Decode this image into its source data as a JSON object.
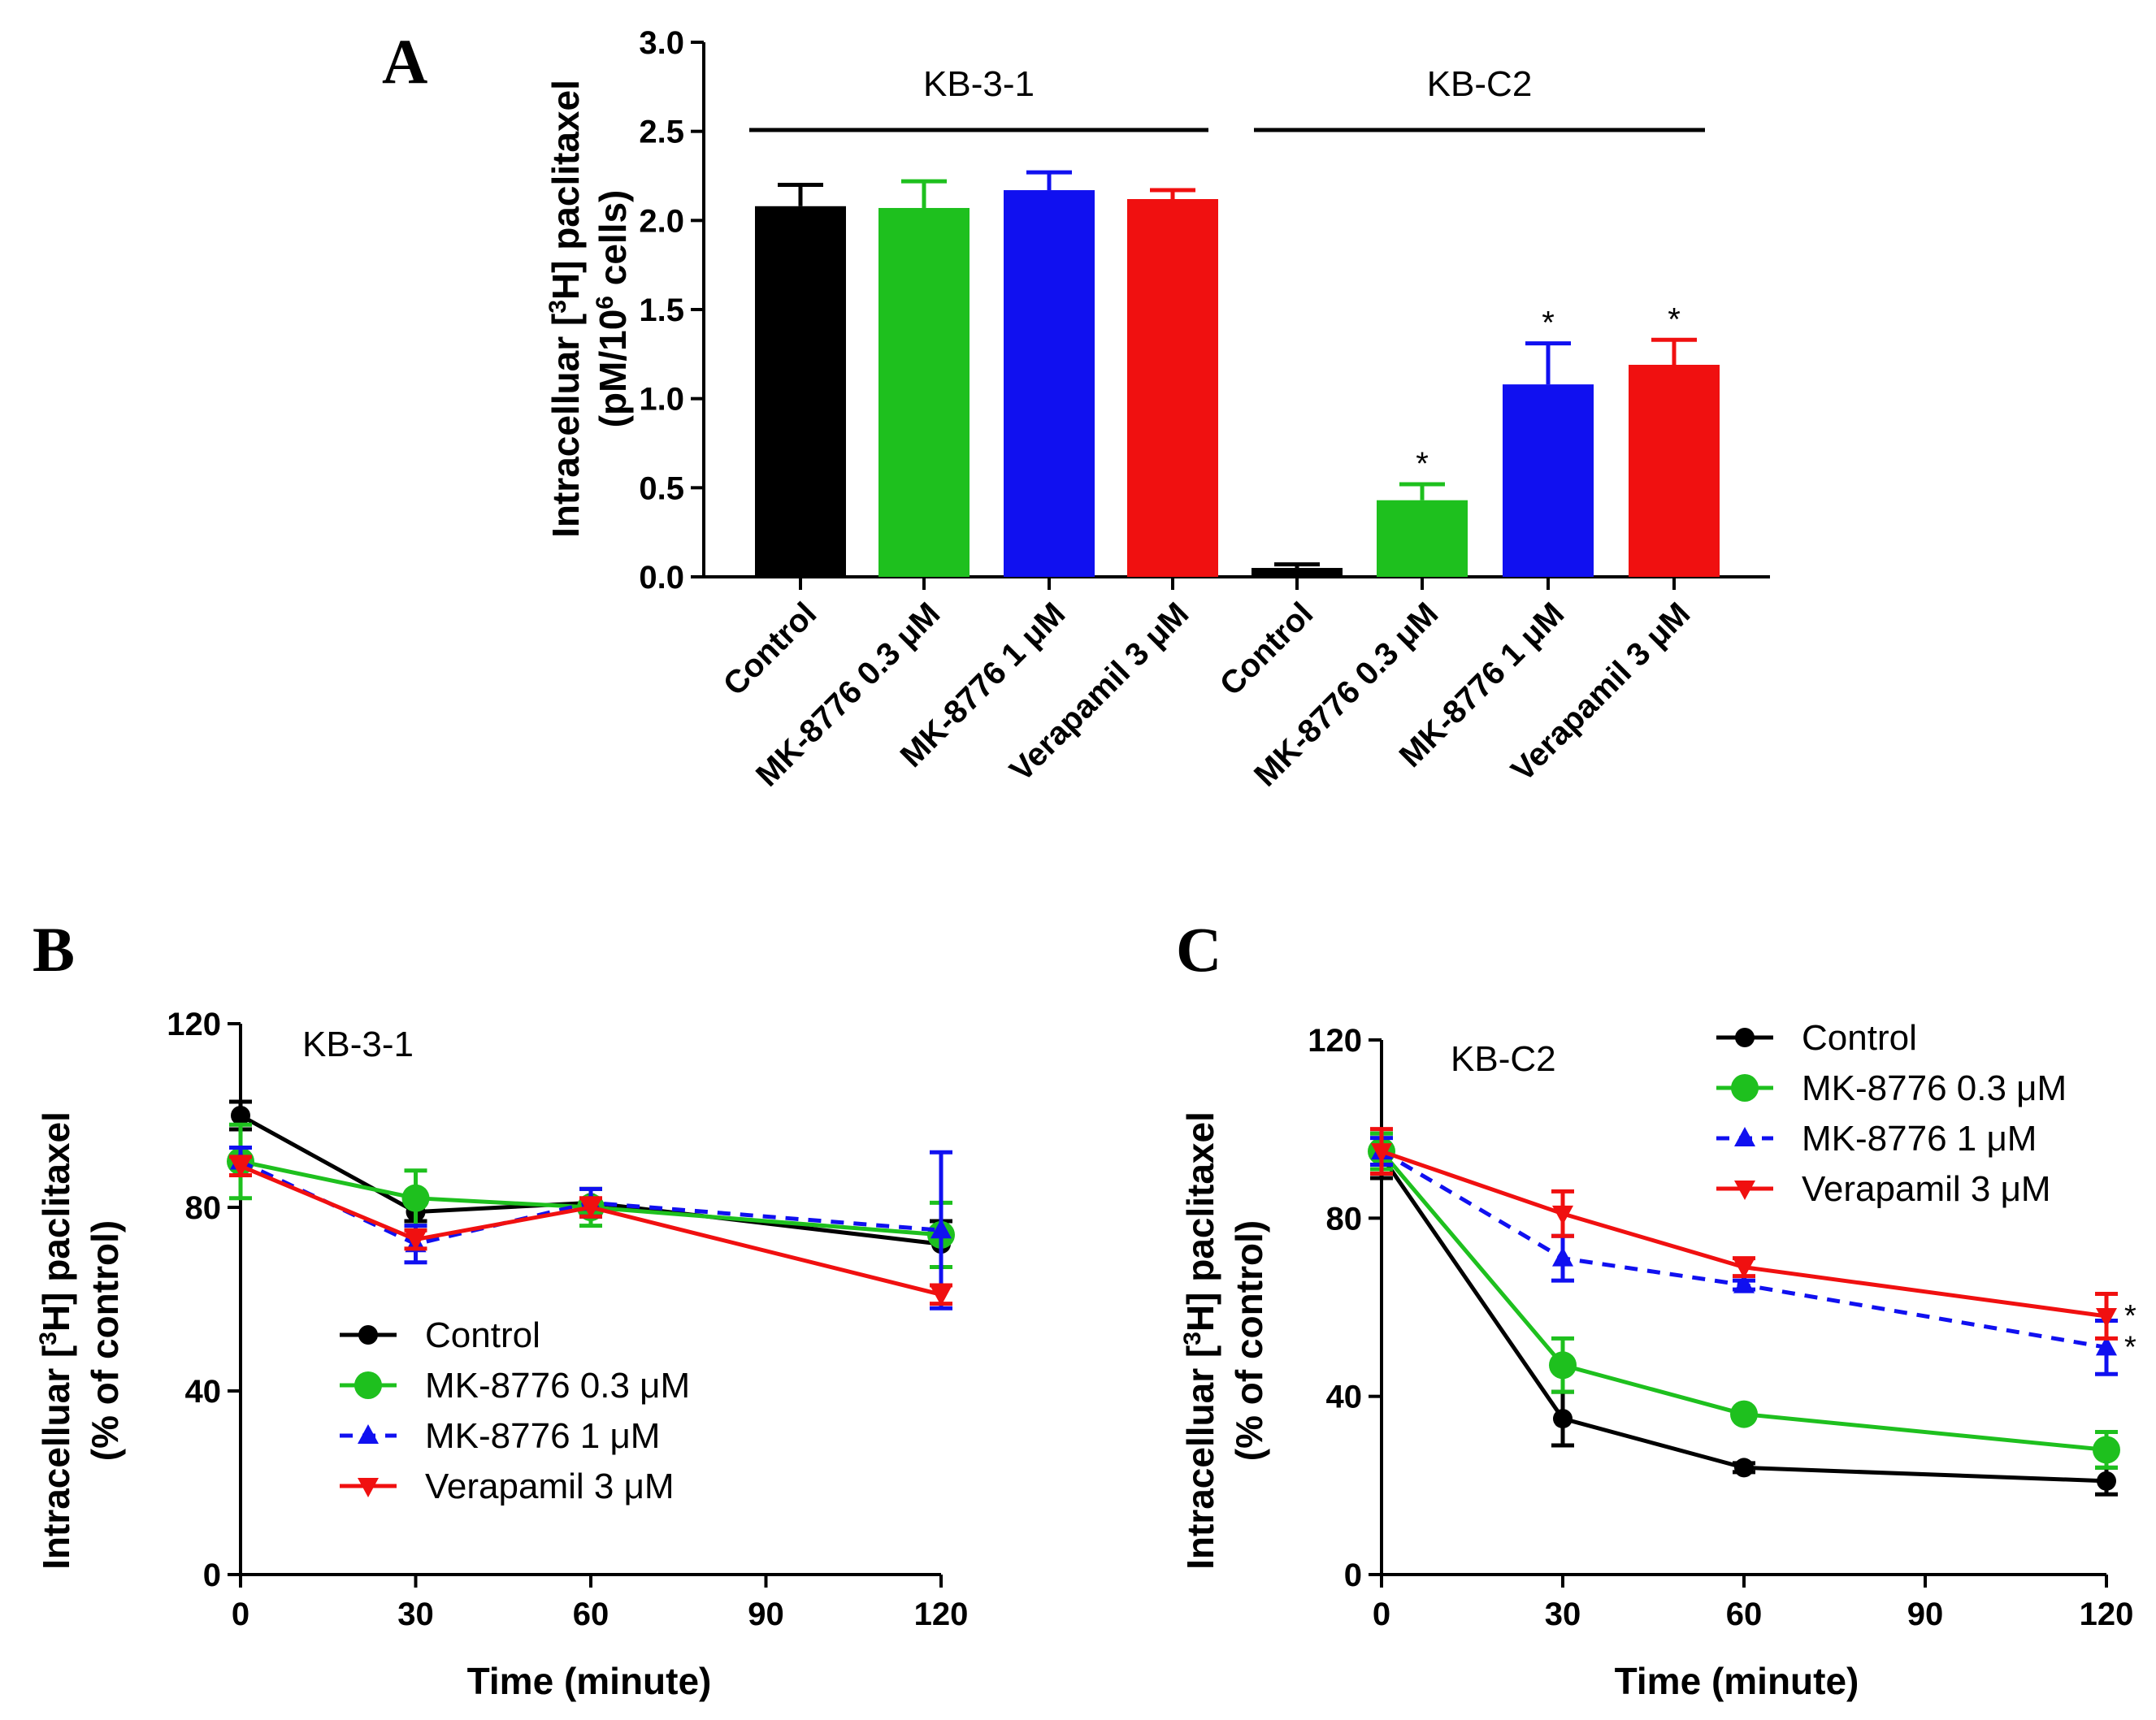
{
  "colors": {
    "control": "#000000",
    "mk_low": "#1ec01e",
    "mk_high": "#1010f0",
    "verapamil": "#f01010"
  },
  "chart_data": [
    {
      "panel": "A",
      "type": "bar",
      "ylabel_line1": "Intracelluar [",
      "ylabel_sup1": "3",
      "ylabel_line1_end": "H] paclitaxel",
      "ylabel_line2": "(pM/10",
      "ylabel_sup2": "6",
      "ylabel_line2_end": " cells)",
      "ylim": [
        0,
        3.0
      ],
      "yticks": [
        "0.0",
        "0.5",
        "1.0",
        "1.5",
        "2.0",
        "2.5",
        "3.0"
      ],
      "groups": [
        "KB-3-1",
        "KB-C2"
      ],
      "categories": [
        "Control",
        "MK-8776 0.3 μM",
        "MK-8776 1 μM",
        "Verapamil 3 μM",
        "Control",
        "MK-8776 0.3 μM",
        "MK-8776 1 μM",
        "Verapamil 3 μM"
      ],
      "values": [
        2.08,
        2.07,
        2.17,
        2.12,
        0.05,
        0.43,
        1.08,
        1.19
      ],
      "errors": [
        0.12,
        0.15,
        0.1,
        0.05,
        0.02,
        0.09,
        0.23,
        0.14
      ],
      "significance": [
        "",
        "",
        "",
        "",
        "",
        "*",
        "*",
        "*"
      ],
      "color_keys": [
        "control",
        "mk_low",
        "mk_high",
        "verapamil",
        "control",
        "mk_low",
        "mk_high",
        "verapamil"
      ]
    },
    {
      "panel": "B",
      "type": "line",
      "annotation": "KB-3-1",
      "xlabel": "Time (minute)",
      "ylabel_line1": "Intracelluar [",
      "ylabel_sup1": "3",
      "ylabel_line1_end": "H] paclitaxel",
      "ylabel_line2": "(% of control)",
      "xlim": [
        0,
        120
      ],
      "ylim": [
        0,
        120
      ],
      "xticks": [
        0,
        30,
        60,
        90,
        120
      ],
      "yticks": [
        0,
        40,
        80,
        120
      ],
      "x": [
        0,
        30,
        60,
        120
      ],
      "legend_position": "bottom-left",
      "series": [
        {
          "name": "Control",
          "color_key": "control",
          "marker": "circle",
          "dashed": false,
          "values": [
            100,
            79,
            81,
            72
          ],
          "errors": [
            3,
            2,
            3,
            5
          ],
          "significance": [
            "",
            "",
            "",
            ""
          ]
        },
        {
          "name": "MK-8776 0.3 μM",
          "color_key": "mk_low",
          "marker": "big-circle",
          "dashed": false,
          "values": [
            90,
            82,
            80,
            74
          ],
          "errors": [
            8,
            6,
            4,
            7
          ],
          "significance": [
            "",
            "",
            "",
            ""
          ]
        },
        {
          "name": "MK-8776 1 μM",
          "color_key": "mk_high",
          "marker": "triangle-up",
          "dashed": true,
          "values": [
            90,
            72,
            81,
            75
          ],
          "errors": [
            3,
            4,
            3,
            17
          ],
          "significance": [
            "",
            "",
            "",
            ""
          ]
        },
        {
          "name": "Verapamil 3 μM",
          "color_key": "verapamil",
          "marker": "triangle-down",
          "dashed": false,
          "values": [
            89,
            73,
            80,
            61
          ],
          "errors": [
            2,
            2,
            2,
            2
          ],
          "significance": [
            "",
            "",
            "",
            ""
          ]
        }
      ]
    },
    {
      "panel": "C",
      "type": "line",
      "annotation": "KB-C2",
      "xlabel": "Time (minute)",
      "ylabel_line1": "Intracelluar [",
      "ylabel_sup1": "3",
      "ylabel_line1_end": "H] paclitaxel",
      "ylabel_line2": "(% of control)",
      "xlim": [
        0,
        120
      ],
      "ylim": [
        0,
        120
      ],
      "xticks": [
        0,
        30,
        60,
        90,
        120
      ],
      "yticks": [
        0,
        40,
        80,
        120
      ],
      "x": [
        0,
        30,
        60,
        120
      ],
      "legend_position": "top-right",
      "series": [
        {
          "name": "Control",
          "color_key": "control",
          "marker": "circle",
          "dashed": false,
          "values": [
            94,
            35,
            24,
            21
          ],
          "errors": [
            5,
            6,
            1,
            3
          ],
          "significance": [
            "",
            "",
            "",
            ""
          ]
        },
        {
          "name": "MK-8776 0.3 μM",
          "color_key": "mk_low",
          "marker": "big-circle",
          "dashed": false,
          "values": [
            95,
            47,
            36,
            28
          ],
          "errors": [
            4,
            6,
            1,
            4
          ],
          "significance": [
            "",
            "",
            "",
            ""
          ]
        },
        {
          "name": "MK-8776 1 μM",
          "color_key": "mk_high",
          "marker": "triangle-up",
          "dashed": true,
          "values": [
            95,
            71,
            65,
            51
          ],
          "errors": [
            3,
            5,
            1,
            6
          ],
          "significance": [
            "",
            "",
            "",
            "*"
          ]
        },
        {
          "name": "Verapamil 3 μM",
          "color_key": "verapamil",
          "marker": "triangle-down",
          "dashed": false,
          "values": [
            95,
            81,
            69,
            58
          ],
          "errors": [
            5,
            5,
            2,
            5
          ],
          "significance": [
            "",
            "",
            "",
            "*"
          ]
        }
      ]
    }
  ]
}
